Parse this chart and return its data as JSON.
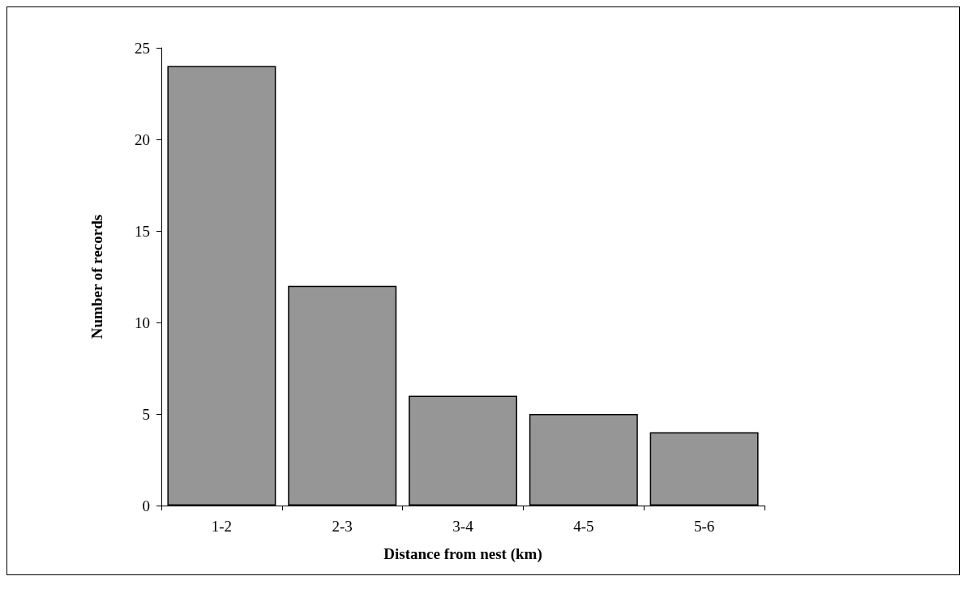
{
  "chart_data": {
    "type": "bar",
    "xlabel": "Distance from nest (km)",
    "ylabel": "Number of records",
    "categories": [
      "1-2",
      "2-3",
      "3-4",
      "4-5",
      "5-6"
    ],
    "values": [
      24,
      12,
      6,
      5,
      4
    ],
    "color": "#969696",
    "ylim": [
      0,
      25
    ],
    "yticks": [
      0,
      5,
      10,
      15,
      20,
      25
    ],
    "grid": false
  }
}
